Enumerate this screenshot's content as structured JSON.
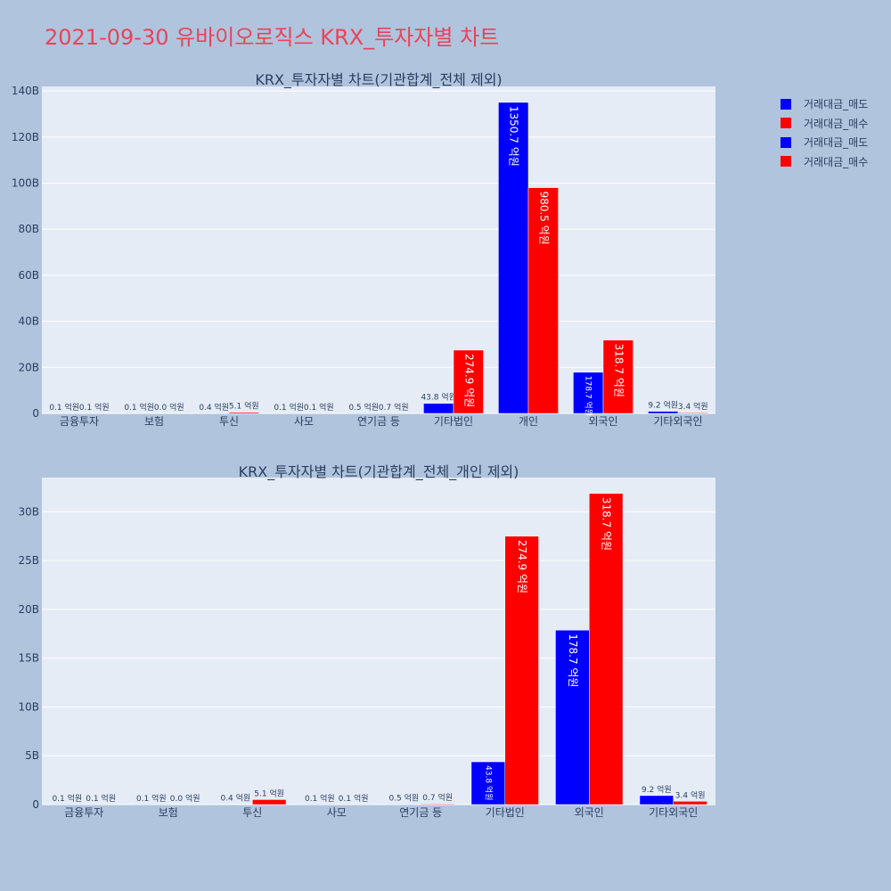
{
  "page": {
    "title": "2021-09-30 유바이오로직스 KRX_투자자별 차트"
  },
  "colors": {
    "sell": "#0000ff",
    "buy": "#ff0000",
    "plot_bg": "#e5ecf6",
    "page_bg": "#b0c4de",
    "title": "#e8445a",
    "text": "#2a3f5f"
  },
  "legend": {
    "items": [
      {
        "label": "거래대금_매도",
        "color": "#0000ff"
      },
      {
        "label": "거래대금_매수",
        "color": "#ff0000"
      },
      {
        "label": "거래대금_매도",
        "color": "#0000ff"
      },
      {
        "label": "거래대금_매수",
        "color": "#ff0000"
      }
    ]
  },
  "chart_data": [
    {
      "type": "bar",
      "title": "KRX_투자자별 차트(기관합계_전체 제외)",
      "categories": [
        "금융투자",
        "보험",
        "투신",
        "사모",
        "연기금 등",
        "기타법인",
        "개인",
        "외국인",
        "기타외국인"
      ],
      "series": [
        {
          "name": "거래대금_매도",
          "values": [
            10000000,
            10000000,
            40000000,
            10000000,
            50000000,
            4380000000,
            135070000000,
            17870000000,
            920000000
          ],
          "labels": [
            "0.1 억원",
            "0.1 억원",
            "0.4 억원",
            "0.1 억원",
            "0.5 억원",
            "43.8 억원",
            "1350.7 억원",
            "178.7 억원",
            "9.2 억원"
          ]
        },
        {
          "name": "거래대금_매수",
          "values": [
            10000000,
            0,
            510000000,
            10000000,
            70000000,
            27490000000,
            98050000000,
            31870000000,
            340000000
          ],
          "labels": [
            "0.1 억원",
            "0.0 억원",
            "5.1 억원",
            "0.1 억원",
            "0.7 억원",
            "274.9 억원",
            "980.5 억원",
            "318.7 억원",
            "3.4 억원"
          ]
        }
      ],
      "yticks": [
        0,
        20000000000,
        40000000000,
        60000000000,
        80000000000,
        100000000000,
        120000000000,
        140000000000
      ],
      "ytick_labels": [
        "0",
        "20B",
        "40B",
        "60B",
        "80B",
        "100B",
        "120B",
        "140B"
      ],
      "ylim": [
        0,
        142000000000
      ],
      "grid": true
    },
    {
      "type": "bar",
      "title": "KRX_투자자별 차트(기관합계_전체_개인 제외)",
      "categories": [
        "금융투자",
        "보험",
        "투신",
        "사모",
        "연기금 등",
        "기타법인",
        "외국인",
        "기타외국인"
      ],
      "series": [
        {
          "name": "거래대금_매도",
          "values": [
            10000000,
            10000000,
            40000000,
            10000000,
            50000000,
            4380000000,
            17870000000,
            920000000
          ],
          "labels": [
            "0.1 억원",
            "0.1 억원",
            "0.4 억원",
            "0.1 억원",
            "0.5 억원",
            "43.8 억원",
            "178.7 억원",
            "9.2 억원"
          ]
        },
        {
          "name": "거래대금_매수",
          "values": [
            10000000,
            0,
            510000000,
            10000000,
            70000000,
            27490000000,
            31870000000,
            340000000
          ],
          "labels": [
            "0.1 억원",
            "0.0 억원",
            "5.1 억원",
            "0.1 억원",
            "0.7 억원",
            "274.9 억원",
            "318.7 억원",
            "3.4 억원"
          ]
        }
      ],
      "yticks": [
        0,
        5000000000,
        10000000000,
        15000000000,
        20000000000,
        25000000000,
        30000000000
      ],
      "ytick_labels": [
        "0",
        "5B",
        "10B",
        "15B",
        "20B",
        "25B",
        "30B"
      ],
      "ylim": [
        0,
        33500000000
      ],
      "grid": true
    }
  ]
}
